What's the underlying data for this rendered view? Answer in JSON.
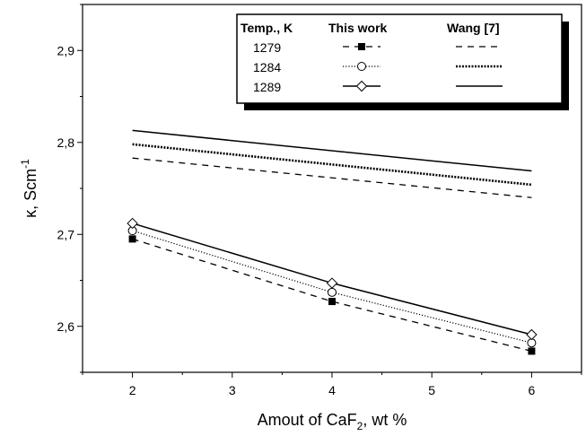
{
  "chart_data": {
    "type": "line",
    "xlabel_prefix": "Amout of CaF",
    "xlabel_sub": "2",
    "xlabel_suffix": ", wt %",
    "ylabel_prefix": "κ, Scm",
    "ylabel_sup": "-1",
    "xlim": [
      1.5,
      6.5
    ],
    "ylim": [
      2.55,
      2.95
    ],
    "x_ticks": [
      2,
      3,
      4,
      5,
      6
    ],
    "x_tick_labels": [
      "2",
      "3",
      "4",
      "5",
      "6"
    ],
    "y_ticks": [
      2.6,
      2.7,
      2.8,
      2.9
    ],
    "y_tick_labels": [
      "2,6",
      "2,7",
      "2,8",
      "2,9"
    ],
    "grid": false,
    "legend": {
      "placement": "top-right",
      "headers": [
        "Temp., K",
        "This work",
        "Wang [7]"
      ],
      "rows": [
        "1279",
        "1284",
        "1289"
      ]
    },
    "series": [
      {
        "temperature": "1279",
        "source": "This work",
        "marker": "square-filled",
        "dash": "dashed",
        "x": [
          2,
          4,
          6
        ],
        "y": [
          2.695,
          2.627,
          2.573
        ]
      },
      {
        "temperature": "1284",
        "source": "This work",
        "marker": "circle-open",
        "dash": "dotted",
        "x": [
          2,
          4,
          6
        ],
        "y": [
          2.704,
          2.637,
          2.582
        ]
      },
      {
        "temperature": "1289",
        "source": "This work",
        "marker": "diamond-open",
        "dash": "solid",
        "x": [
          2,
          4,
          6
        ],
        "y": [
          2.712,
          2.647,
          2.591
        ]
      },
      {
        "temperature": "1279",
        "source": "Wang [7]",
        "marker": "none",
        "dash": "dashed",
        "x": [
          2,
          6
        ],
        "y": [
          2.783,
          2.74
        ]
      },
      {
        "temperature": "1284",
        "source": "Wang [7]",
        "marker": "none",
        "dash": "dotted-bold",
        "x": [
          2,
          6
        ],
        "y": [
          2.798,
          2.754
        ]
      },
      {
        "temperature": "1289",
        "source": "Wang [7]",
        "marker": "none",
        "dash": "solid",
        "x": [
          2,
          6
        ],
        "y": [
          2.813,
          2.769
        ]
      }
    ]
  }
}
